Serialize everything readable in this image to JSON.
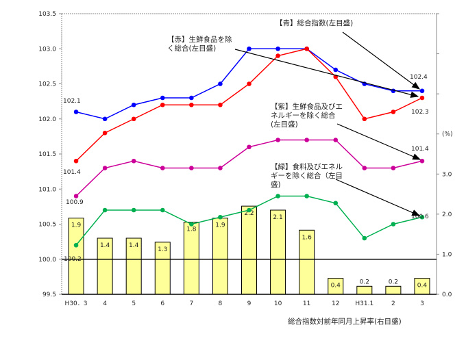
{
  "chart_data": {
    "type": "bar+line",
    "categories": [
      "H30．3",
      "4",
      "5",
      "6",
      "7",
      "8",
      "9",
      "10",
      "11",
      "12",
      "H31.1",
      "2",
      "3"
    ],
    "left_axis": {
      "ylim": [
        99.5,
        103.5
      ],
      "ticks": [
        "99.5",
        "100.0",
        "100.5",
        "101.0",
        "101.5",
        "102.0",
        "102.5",
        "103.0",
        "103.5"
      ]
    },
    "right_axis": {
      "ylim": [
        0.0,
        7.0
      ],
      "unit": "(%)",
      "ticks": [
        "0.0",
        "1.0",
        "2.0",
        "3.0"
      ]
    },
    "series": [
      {
        "key": "blue",
        "color": "#0000ff",
        "axis": "left",
        "type": "line",
        "values": [
          102.1,
          102.0,
          102.2,
          102.3,
          102.3,
          102.5,
          103.0,
          103.0,
          103.0,
          102.7,
          102.5,
          102.4,
          102.4
        ]
      },
      {
        "key": "red",
        "color": "#ff0000",
        "axis": "left",
        "type": "line",
        "values": [
          101.4,
          101.8,
          102.0,
          102.2,
          102.2,
          102.2,
          102.5,
          102.9,
          103.0,
          102.6,
          102.0,
          102.1,
          102.3
        ]
      },
      {
        "key": "purple",
        "color": "#cc0099",
        "axis": "left",
        "type": "line",
        "values": [
          100.9,
          101.3,
          101.4,
          101.3,
          101.3,
          101.3,
          101.6,
          101.7,
          101.7,
          101.7,
          101.3,
          101.3,
          101.4
        ]
      },
      {
        "key": "green",
        "color": "#00b050",
        "axis": "left",
        "type": "line",
        "values": [
          100.2,
          100.7,
          100.7,
          100.7,
          100.5,
          100.6,
          100.7,
          100.9,
          100.9,
          100.8,
          100.3,
          100.5,
          100.6
        ]
      },
      {
        "key": "bars",
        "color": "#ffff99",
        "axis": "right",
        "type": "bar",
        "values": [
          1.9,
          1.4,
          1.4,
          1.3,
          1.8,
          1.9,
          2.2,
          2.1,
          1.6,
          0.4,
          0.2,
          0.2,
          0.4
        ]
      }
    ],
    "annotations": {
      "blue": [
        "【青】総合指数(左目盛)"
      ],
      "red": [
        "【赤】生鮮食品を除",
        "く総合(左目盛)"
      ],
      "purple": [
        "【紫】生鮮食品及びエ",
        "ネルギーを除く総合",
        "(左目盛)"
      ],
      "green": [
        "【緑】食料及びエネル",
        "ギーを除く総合（左目",
        "盛)"
      ],
      "bars": [
        "総合指数対前年同月上昇率(右目盛)"
      ]
    },
    "value_labels": {
      "start": {
        "blue": "102.1",
        "red": "101.4",
        "purple": "100.9",
        "green": "100.2"
      },
      "end": {
        "blue": "102.4",
        "red": "102.3",
        "purple": "101.4",
        "green": "100.6"
      },
      "bars": [
        "1.9",
        "1.4",
        "1.4",
        "1.3",
        "1.8",
        "1.9",
        "2.2",
        "2.1",
        "1.6",
        "0.4",
        "0.2",
        "0.2",
        "0.4"
      ]
    },
    "reference_line": 100.0,
    "grid": false,
    "legend": "none"
  }
}
